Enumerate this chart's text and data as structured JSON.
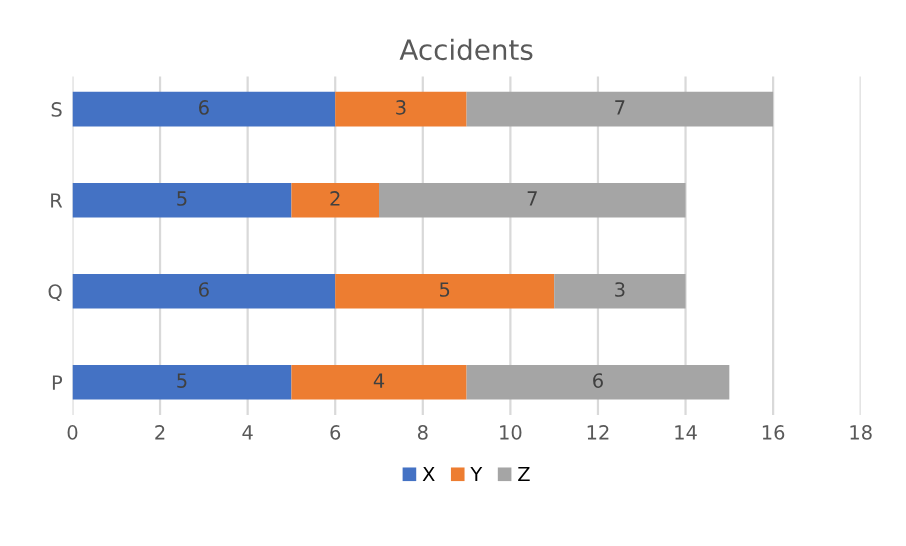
{
  "chart_data": {
    "type": "bar",
    "title": "Accidents",
    "orientation": "horizontal",
    "stacked": true,
    "categories": [
      "S",
      "R",
      "Q",
      "P"
    ],
    "series": [
      {
        "name": "X",
        "color": "#4472c4",
        "values": [
          6,
          5,
          6,
          5
        ]
      },
      {
        "name": "Y",
        "color": "#ed7d31",
        "values": [
          3,
          2,
          5,
          4
        ]
      },
      {
        "name": "Z",
        "color": "#a5a5a5",
        "values": [
          7,
          7,
          3,
          6
        ]
      }
    ],
    "xlim": [
      0,
      18
    ],
    "xticks": [
      0,
      2,
      4,
      6,
      8,
      10,
      12,
      14,
      16,
      18
    ],
    "grid": "x",
    "legend": "bottom",
    "data_labels": true
  }
}
